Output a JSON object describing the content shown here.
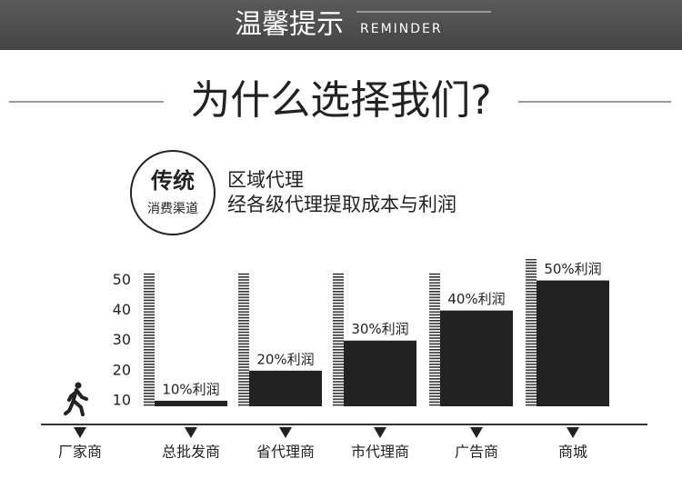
{
  "header": {
    "title": "温馨提示",
    "subtitle": "REMINDER"
  },
  "heading": "为什么选择我们?",
  "badge": {
    "title": "传统",
    "subtitle": "消费渠道"
  },
  "intro": [
    "区域代理",
    "经各级代理提取成本与利润"
  ],
  "chart_data": {
    "type": "bar",
    "categories": [
      "厂家商",
      "总批发商",
      "省代理商",
      "市代理商",
      "广告商",
      "商城"
    ],
    "values": [
      null,
      10,
      20,
      30,
      40,
      50
    ],
    "value_labels": [
      null,
      "10%利润",
      "20%利润",
      "30%利润",
      "40%利润",
      "50%利润"
    ],
    "color": "#222222",
    "ylim": [
      0,
      55
    ],
    "yticks": [
      10,
      20,
      30,
      40,
      50
    ]
  }
}
